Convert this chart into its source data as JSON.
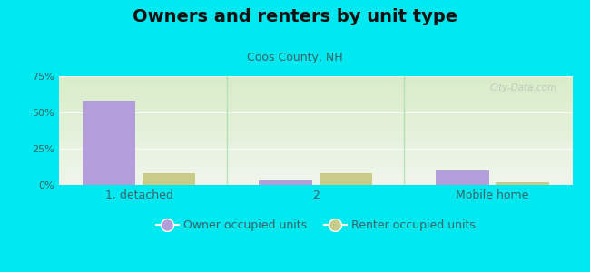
{
  "title": "Owners and renters by unit type",
  "subtitle": "Coos County, NH",
  "categories": [
    "1, detached",
    "2",
    "Mobile home"
  ],
  "owner_values": [
    58,
    3,
    10
  ],
  "renter_values": [
    8,
    8,
    2
  ],
  "owner_color": "#b39ddb",
  "renter_color": "#c8cc88",
  "background_outer": "#00e8f0",
  "background_inner_top": "#f0f5ec",
  "background_inner_bottom": "#d8ecc8",
  "ylim": [
    0,
    75
  ],
  "yticks": [
    0,
    25,
    50,
    75
  ],
  "ytick_labels": [
    "0%",
    "25%",
    "50%",
    "75%"
  ],
  "title_fontsize": 14,
  "subtitle_fontsize": 9,
  "legend_label_owner": "Owner occupied units",
  "legend_label_renter": "Renter occupied units",
  "bar_width": 0.3,
  "watermark": "City-Data.com",
  "subtitle_color": "#336666",
  "tick_color": "#336666",
  "gridline_color": "#ffffff",
  "separator_color": "#aaddaa"
}
